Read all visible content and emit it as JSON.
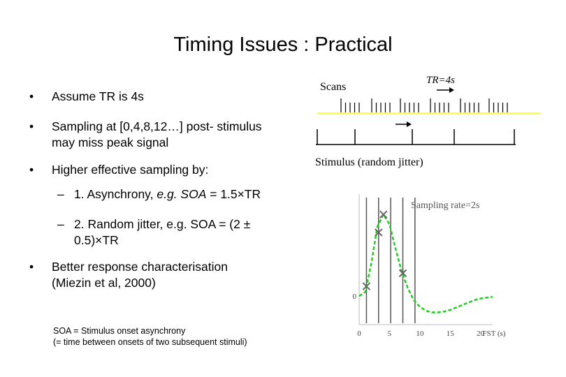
{
  "slide": {
    "title": "Timing Issues : Practical",
    "bullets": [
      {
        "marker": "•",
        "lines": [
          "Assume TR is 4s"
        ]
      },
      {
        "marker": "•",
        "lines": [
          "Sampling at [0,4,8,12…] post- stimulus",
          "may miss peak signal"
        ]
      },
      {
        "marker": "•",
        "lines": [
          "Higher effective sampling by:"
        ]
      },
      {
        "marker": "•",
        "lines": [
          "Better response characterisation",
          "(Miezin et al, 2000)"
        ]
      }
    ],
    "subbullets": [
      {
        "marker": "–",
        "prefix": "1. Asynchrony, ",
        "italic": "e.g. SOA",
        "suffix": " = 1.5×TR"
      },
      {
        "marker": "–",
        "lines": [
          "2. Random jitter, e.g. SOA = (2 ±",
          "0.5)×TR"
        ]
      }
    ],
    "footnote": [
      "SOA = Stimulus onset asynchrony",
      "(= time between onsets of two subsequent stimuli)"
    ]
  },
  "timing_diagram": {
    "scans_label": "Scans",
    "tr_label": "TR=4s",
    "stimulus_label": "Stimulus (random jitter)",
    "highlight_color": "#ffff44"
  },
  "chart_data": {
    "type": "line",
    "annotation": "Sampling rate=2s",
    "xlabel": "FST (s)",
    "xticks": [
      0,
      5,
      10,
      15,
      20
    ],
    "xlim": [
      0,
      22
    ],
    "yticks": [
      0
    ],
    "ylim": [
      -0.35,
      1.25
    ],
    "series": [
      {
        "color": "#22cc22",
        "style": "dashed",
        "x": [
          0,
          1,
          2,
          3,
          4,
          5,
          6,
          7,
          8,
          9,
          10,
          11,
          12,
          13,
          14,
          15,
          16,
          17,
          18,
          19,
          20,
          21,
          22
        ],
        "y": [
          0,
          0.05,
          0.4,
          0.85,
          1.0,
          0.88,
          0.58,
          0.3,
          0.1,
          -0.05,
          -0.13,
          -0.18,
          -0.2,
          -0.2,
          -0.19,
          -0.17,
          -0.14,
          -0.11,
          -0.08,
          -0.05,
          -0.03,
          -0.02,
          -0.01
        ]
      }
    ],
    "sample_lines_x": [
      1.2,
      3.2,
      5.2,
      7.2,
      9.2
    ],
    "sample_points": [
      {
        "x": 1.2,
        "y": 0.12
      },
      {
        "x": 3.2,
        "y": 0.78
      },
      {
        "x": 4.0,
        "y": 1.0
      },
      {
        "x": 7.2,
        "y": 0.28
      }
    ]
  }
}
